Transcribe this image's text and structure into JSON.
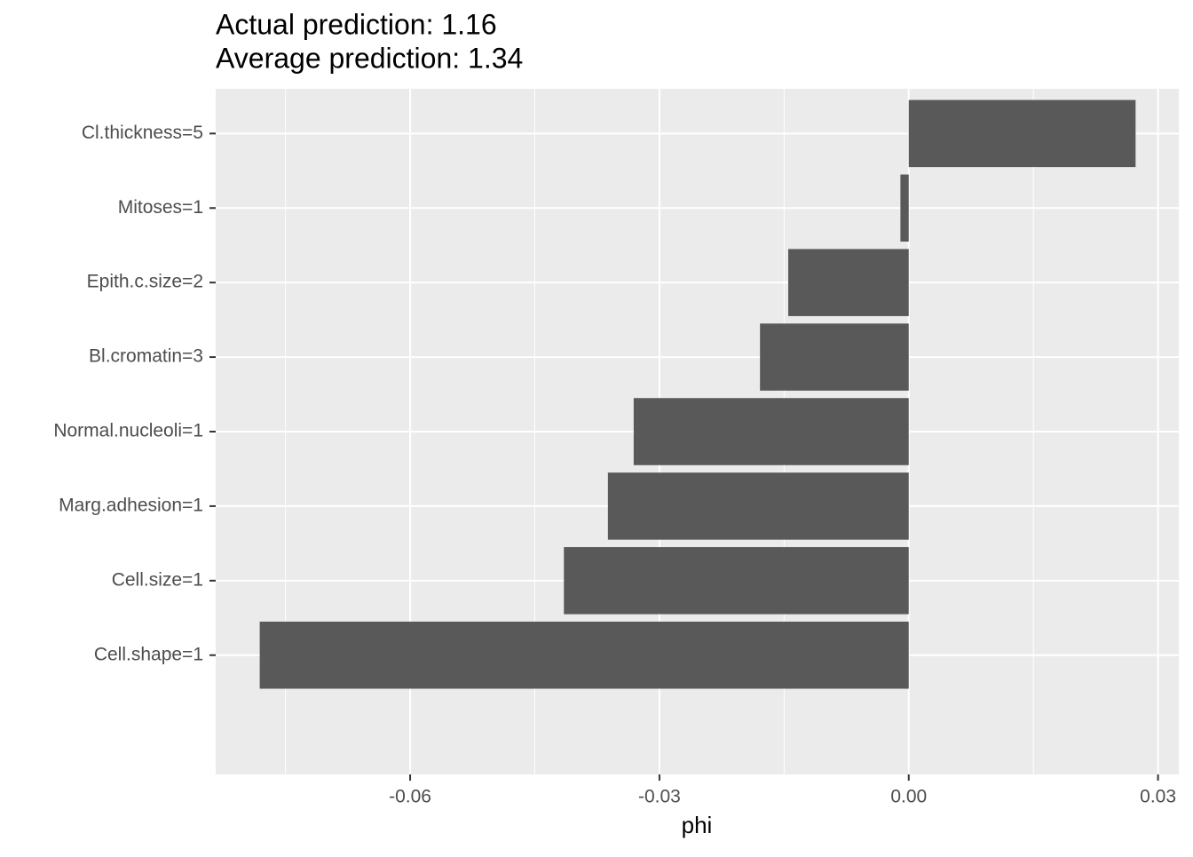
{
  "chart_data": {
    "type": "barh",
    "title": "Actual prediction: 1.16",
    "subtitle": "Average prediction: 1.34",
    "x_label": "phi",
    "categories": [
      "Cl.thickness=5",
      "Mitoses=1",
      "Epith.c.size=2",
      "Bl.cromatin=3",
      "Normal.nucleoli=1",
      "Marg.adhesion=1",
      "Cell.size=1",
      "Cell.shape=1"
    ],
    "values": [
      0.0273,
      -0.001,
      -0.0145,
      -0.0179,
      -0.0331,
      -0.0362,
      -0.0415,
      -0.0781
    ],
    "color": "#595959",
    "xlim": [
      -0.0834,
      0.0325
    ],
    "xticks": [
      -0.06,
      -0.03,
      {
        "value": 0,
        "label": "0.00"
      },
      0.03
    ],
    "grid": true
  }
}
